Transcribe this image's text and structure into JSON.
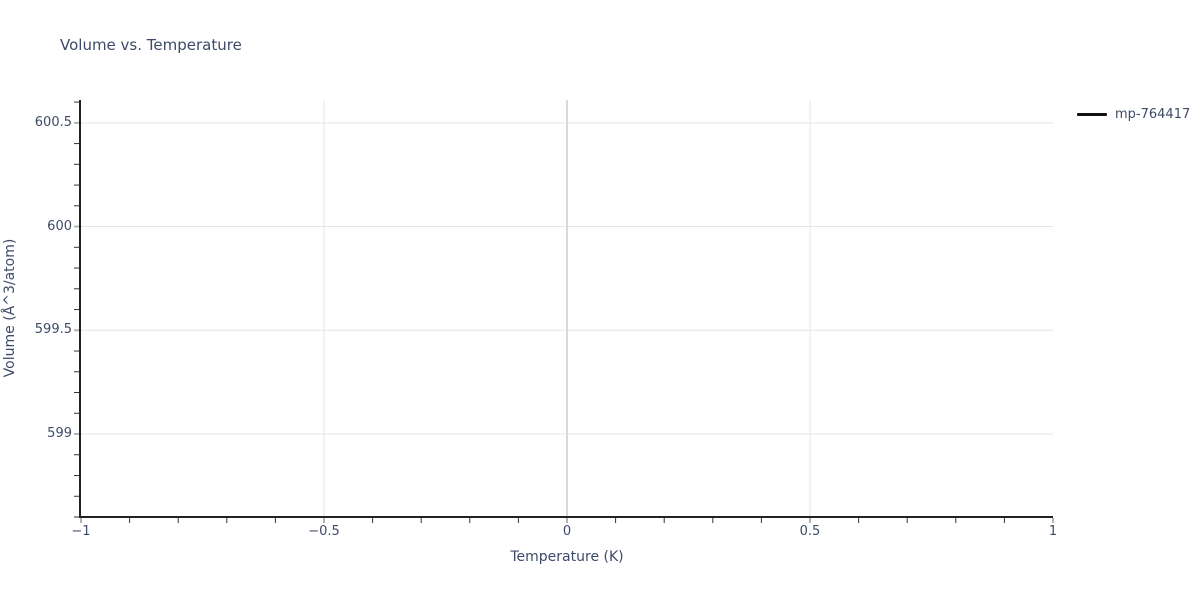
{
  "chart_data": {
    "type": "line",
    "title": "Volume vs. Temperature",
    "xlabel": "Temperature (K)",
    "ylabel": "Volume (Å^3/atom)",
    "xlim": [
      -1,
      1
    ],
    "ylim": [
      598.6,
      600.61
    ],
    "x_major_ticks": {
      "values": [
        -1,
        -0.5,
        0,
        0.5,
        1
      ],
      "labels": [
        "−1",
        "−0.5",
        "0",
        "0.5",
        "1"
      ]
    },
    "y_major_ticks": {
      "values": [
        600.5,
        600,
        599.5,
        599
      ],
      "labels": [
        "600.5",
        "600",
        "599.5",
        "599"
      ]
    },
    "minor_tick_step": 0.1,
    "grid": true,
    "zeroline_x": 0,
    "legend": {
      "position": "top-right",
      "entries": [
        {
          "label": "mp-764417",
          "color": "#111111"
        }
      ]
    },
    "series": [
      {
        "name": "mp-764417",
        "color": "#111111",
        "x": [],
        "y": []
      }
    ],
    "colors": {
      "text": "#3d4b68",
      "grid": "#e5e5e5",
      "zeroline": "#d9d9d9",
      "axis": "#222222",
      "minor_tick": "#333333",
      "major_tick": "#b3b3b3",
      "background": "#ffffff"
    }
  }
}
